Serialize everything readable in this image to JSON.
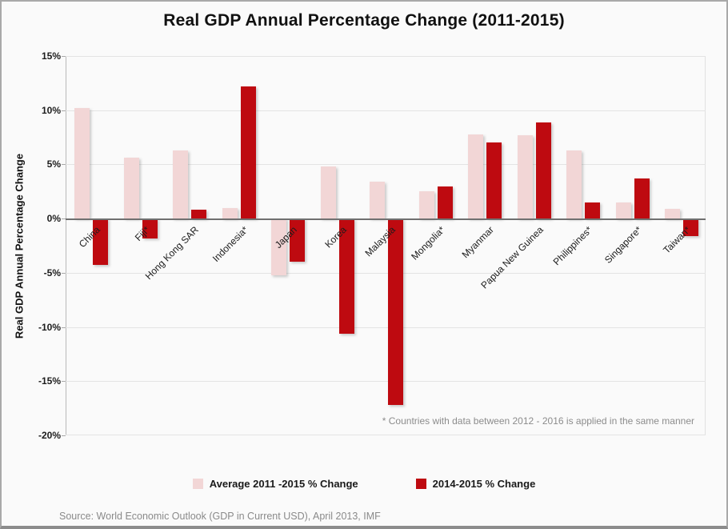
{
  "chart_data": {
    "type": "bar",
    "title": "Real GDP Annual Percentage Change (2011-2015)",
    "xlabel": "",
    "ylabel": "Real GDP Annual Percentage Change",
    "ylim": [
      -20,
      15
    ],
    "ytick_step": 5,
    "ytick_labels": [
      "15%",
      "10%",
      "5%",
      "0%",
      "-5%",
      "-10%",
      "-15%",
      "-20%"
    ],
    "grid": "horizontal",
    "legend_position": "bottom",
    "categories": [
      "China",
      "Fiji*",
      "Hong Kong SAR",
      "Indonesia*",
      "Japan",
      "Korea",
      "Malaysia",
      "Mongolia*",
      "Myanmar",
      "Papua New Guinea",
      "Philippines*",
      "Singapore*",
      "Taiwan*"
    ],
    "series": [
      {
        "name": "Average 2011 -2015 % Change",
        "color": "#f2d6d6",
        "values": [
          10.2,
          5.6,
          6.3,
          1.0,
          -5.2,
          4.8,
          3.4,
          2.5,
          7.8,
          7.7,
          6.3,
          1.5,
          0.9
        ]
      },
      {
        "name": "2014-2015 % Change",
        "color": "#be0a10",
        "values": [
          -4.3,
          -1.8,
          0.8,
          12.2,
          -4.0,
          -10.6,
          -17.2,
          3.0,
          7.0,
          8.9,
          1.5,
          3.7,
          -1.6
        ]
      }
    ],
    "footnote": "* Countries with data between 2012 - 2016 is applied in the same manner"
  },
  "footer": {
    "source": "Source: World Economic Outlook (GDP in Current USD), April 2013, IMF"
  },
  "colors": {
    "series_avg": "#f2d6d6",
    "series_current": "#be0a10",
    "gridline": "#e3e3e3",
    "zero_axis": "#707070",
    "background": "#fafafa",
    "muted_text": "#8c8c8c"
  }
}
